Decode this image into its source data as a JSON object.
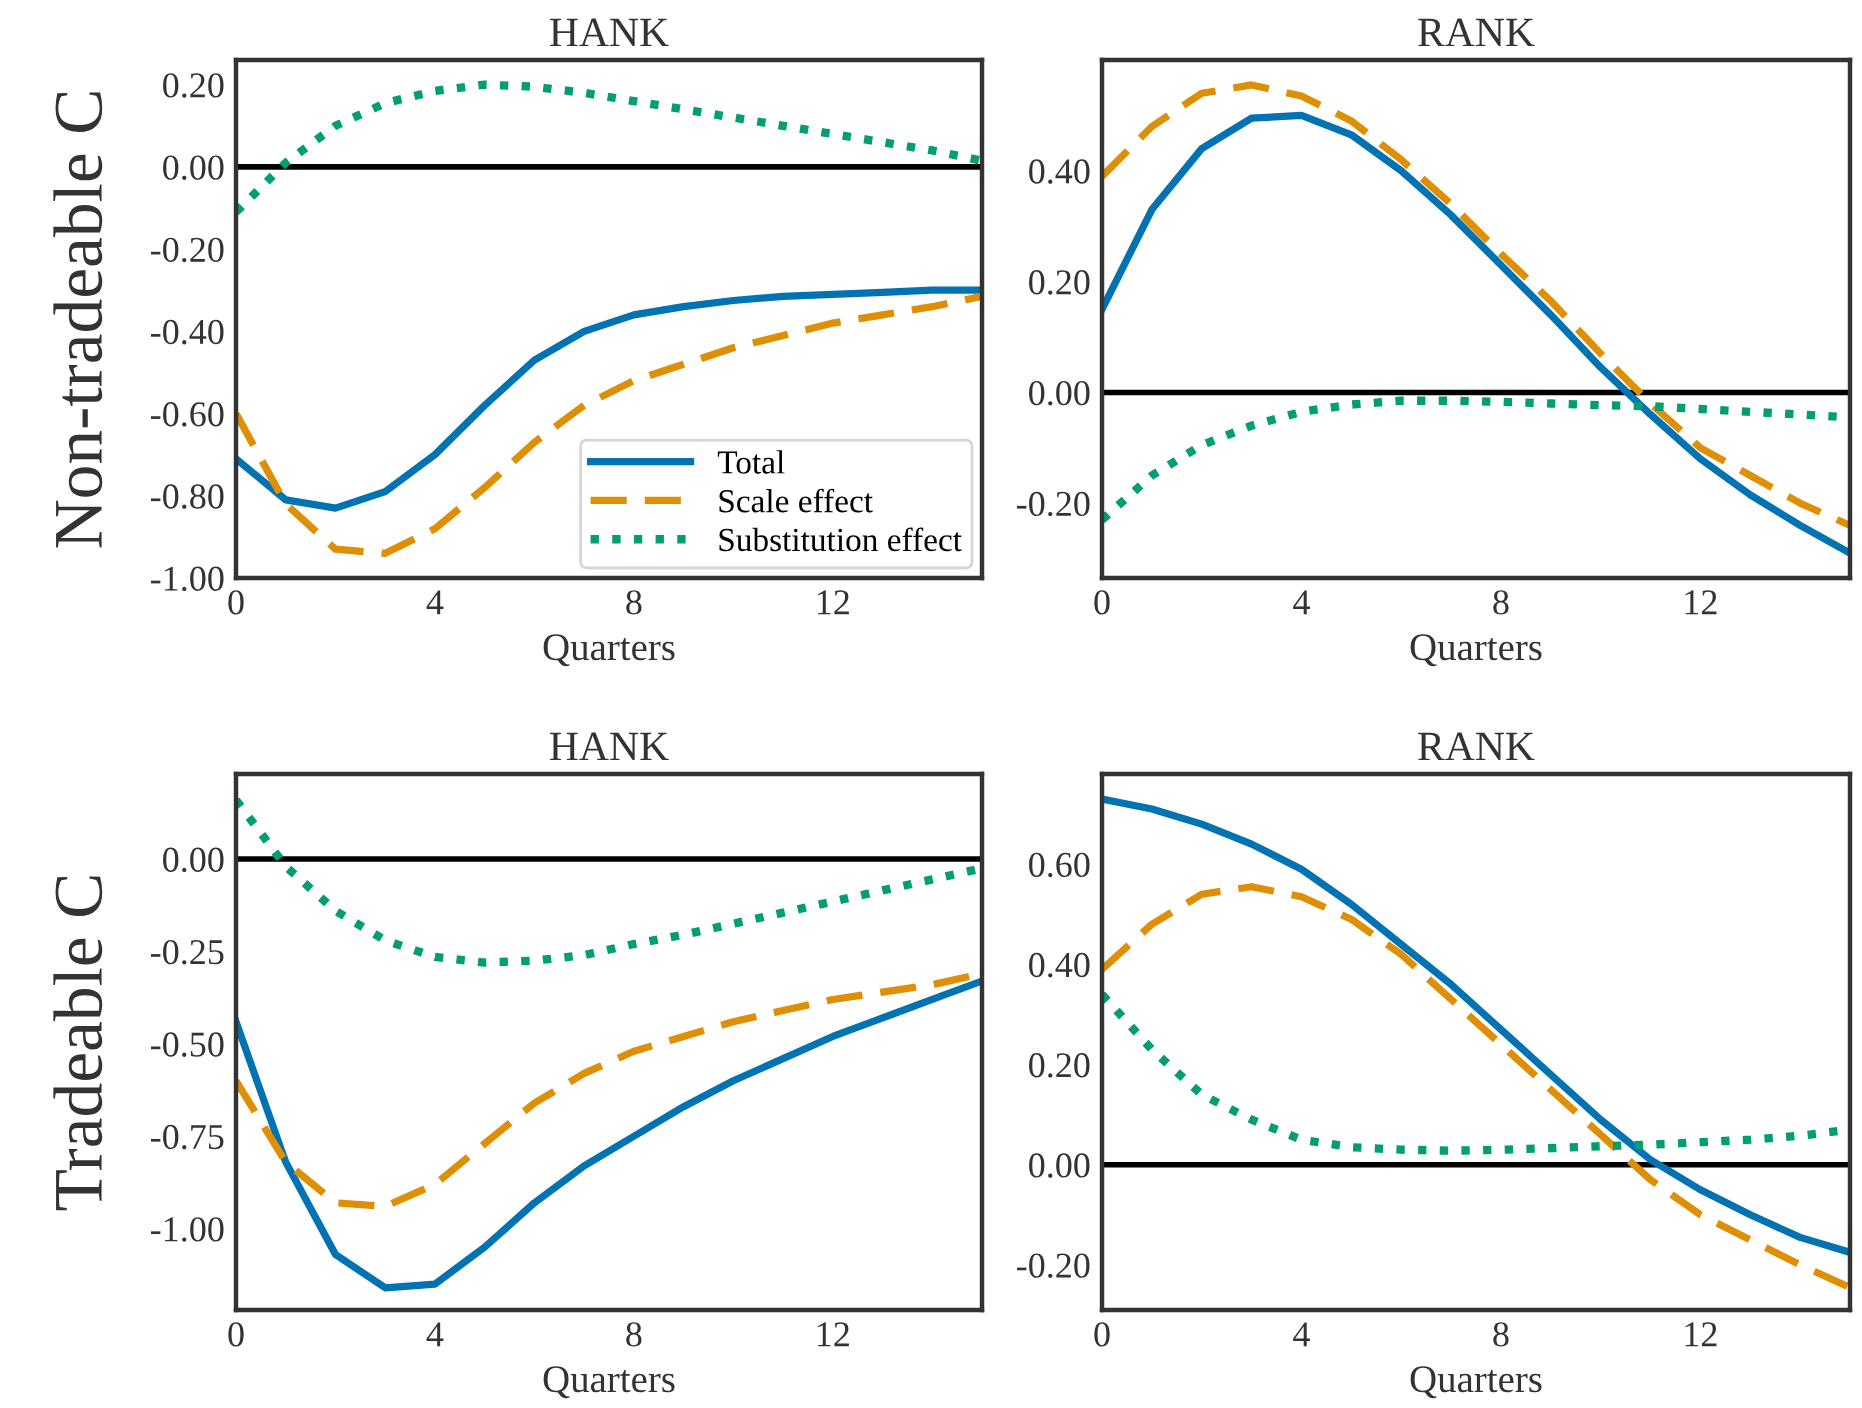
{
  "chart_data": [
    {
      "type": "line",
      "title": "HANK",
      "xlabel": "Quarters",
      "ylabel": "Non-tradeable C",
      "x": [
        0,
        1,
        2,
        3,
        4,
        5,
        6,
        7,
        8,
        9,
        10,
        11,
        12,
        13,
        14,
        15
      ],
      "xlim": [
        0,
        15
      ],
      "xticks": [
        0,
        4,
        8,
        12
      ],
      "ylim": [
        -1.0,
        0.26
      ],
      "yticks": [
        {
          "value": -1.0,
          "label": "-1.00"
        },
        {
          "value": -0.8,
          "label": "-0.80"
        },
        {
          "value": -0.6,
          "label": "-0.60"
        },
        {
          "value": -0.4,
          "label": "-0.40"
        },
        {
          "value": -0.2,
          "label": "-0.20"
        },
        {
          "value": 0.0,
          "label": "0.00"
        },
        {
          "value": 0.2,
          "label": "0.20"
        }
      ],
      "grid": false,
      "legend": "bottom right",
      "ref_lines": [
        {
          "axis": "y",
          "value": 0,
          "color": "#000000",
          "line_style": "solid"
        }
      ],
      "series": [
        {
          "name": "Total",
          "color": "#0173b2",
          "line_style": "solid",
          "values": [
            -0.71,
            -0.81,
            -0.83,
            -0.79,
            -0.7,
            -0.58,
            -0.47,
            -0.4,
            -0.36,
            -0.34,
            -0.325,
            -0.315,
            -0.31,
            -0.305,
            -0.3,
            -0.3
          ]
        },
        {
          "name": "Scale effect",
          "color": "#de8f05",
          "line_style": "dashed",
          "values": [
            -0.6,
            -0.82,
            -0.93,
            -0.94,
            -0.88,
            -0.78,
            -0.67,
            -0.58,
            -0.52,
            -0.48,
            -0.44,
            -0.41,
            -0.38,
            -0.36,
            -0.34,
            -0.315
          ]
        },
        {
          "name": "Substitution effect",
          "color": "#029e73",
          "line_style": "dotted",
          "values": [
            -0.11,
            0.01,
            0.1,
            0.155,
            0.185,
            0.2,
            0.195,
            0.18,
            0.16,
            0.14,
            0.12,
            0.1,
            0.08,
            0.06,
            0.04,
            0.015
          ]
        }
      ]
    },
    {
      "type": "line",
      "title": "RANK",
      "xlabel": "Quarters",
      "x": [
        0,
        1,
        2,
        3,
        4,
        5,
        6,
        7,
        8,
        9,
        10,
        11,
        12,
        13,
        14,
        15
      ],
      "xlim": [
        0,
        15
      ],
      "xticks": [
        0,
        4,
        8,
        12
      ],
      "ylim": [
        -0.335,
        0.6
      ],
      "yticks": [
        {
          "value": -0.2,
          "label": "-0.20"
        },
        {
          "value": 0.0,
          "label": "0.00"
        },
        {
          "value": 0.2,
          "label": "0.20"
        },
        {
          "value": 0.4,
          "label": "0.40"
        }
      ],
      "grid": false,
      "ref_lines": [
        {
          "axis": "y",
          "value": 0,
          "color": "#000000",
          "line_style": "solid"
        }
      ],
      "series": [
        {
          "color": "#0173b2",
          "line_style": "solid",
          "values": [
            0.15,
            0.33,
            0.44,
            0.495,
            0.5,
            0.465,
            0.4,
            0.32,
            0.23,
            0.14,
            0.045,
            -0.04,
            -0.12,
            -0.185,
            -0.24,
            -0.29
          ]
        },
        {
          "color": "#de8f05",
          "line_style": "dashed",
          "values": [
            0.39,
            0.48,
            0.54,
            0.555,
            0.535,
            0.49,
            0.42,
            0.34,
            0.25,
            0.165,
            0.07,
            -0.02,
            -0.1,
            -0.15,
            -0.2,
            -0.24
          ]
        },
        {
          "color": "#029e73",
          "line_style": "dotted",
          "values": [
            -0.23,
            -0.15,
            -0.095,
            -0.06,
            -0.035,
            -0.022,
            -0.015,
            -0.015,
            -0.017,
            -0.02,
            -0.023,
            -0.025,
            -0.03,
            -0.035,
            -0.04,
            -0.045
          ]
        }
      ]
    },
    {
      "type": "line",
      "title": "HANK",
      "xlabel": "Quarters",
      "ylabel": "Tradeable C",
      "x": [
        0,
        1,
        2,
        3,
        4,
        5,
        6,
        7,
        8,
        9,
        10,
        11,
        12,
        13,
        14,
        15
      ],
      "xlim": [
        0,
        15
      ],
      "xticks": [
        0,
        4,
        8,
        12
      ],
      "ylim": [
        -1.22,
        0.23
      ],
      "yticks": [
        {
          "value": -1.0,
          "label": "-1.00"
        },
        {
          "value": -0.75,
          "label": "-0.75"
        },
        {
          "value": -0.5,
          "label": "-0.50"
        },
        {
          "value": -0.25,
          "label": "-0.25"
        },
        {
          "value": 0.0,
          "label": "0.00"
        }
      ],
      "grid": false,
      "ref_lines": [
        {
          "axis": "y",
          "value": 0,
          "color": "#000000",
          "line_style": "solid"
        }
      ],
      "series": [
        {
          "color": "#0173b2",
          "line_style": "solid",
          "values": [
            -0.44,
            -0.82,
            -1.07,
            -1.16,
            -1.15,
            -1.05,
            -0.93,
            -0.83,
            -0.75,
            -0.67,
            -0.6,
            -0.54,
            -0.48,
            -0.43,
            -0.38,
            -0.33
          ]
        },
        {
          "color": "#de8f05",
          "line_style": "dashed",
          "values": [
            -0.6,
            -0.82,
            -0.93,
            -0.94,
            -0.88,
            -0.77,
            -0.66,
            -0.58,
            -0.52,
            -0.48,
            -0.44,
            -0.41,
            -0.38,
            -0.36,
            -0.34,
            -0.31
          ]
        },
        {
          "color": "#029e73",
          "line_style": "dotted",
          "values": [
            0.16,
            -0.02,
            -0.14,
            -0.22,
            -0.265,
            -0.28,
            -0.275,
            -0.26,
            -0.23,
            -0.205,
            -0.175,
            -0.145,
            -0.115,
            -0.085,
            -0.055,
            -0.025
          ]
        }
      ]
    },
    {
      "type": "line",
      "title": "RANK",
      "xlabel": "Quarters",
      "x": [
        0,
        1,
        2,
        3,
        4,
        5,
        6,
        7,
        8,
        9,
        10,
        11,
        12,
        13,
        14,
        15
      ],
      "xlim": [
        0,
        15
      ],
      "xticks": [
        0,
        4,
        8,
        12
      ],
      "ylim": [
        -0.29,
        0.78
      ],
      "yticks": [
        {
          "value": -0.2,
          "label": "-0.20"
        },
        {
          "value": 0.0,
          "label": "0.00"
        },
        {
          "value": 0.2,
          "label": "0.20"
        },
        {
          "value": 0.4,
          "label": "0.40"
        },
        {
          "value": 0.6,
          "label": "0.60"
        }
      ],
      "grid": false,
      "ref_lines": [
        {
          "axis": "y",
          "value": 0,
          "color": "#000000",
          "line_style": "solid"
        }
      ],
      "series": [
        {
          "color": "#0173b2",
          "line_style": "solid",
          "values": [
            0.73,
            0.71,
            0.68,
            0.64,
            0.59,
            0.52,
            0.44,
            0.36,
            0.27,
            0.18,
            0.09,
            0.01,
            -0.05,
            -0.1,
            -0.145,
            -0.175
          ]
        },
        {
          "color": "#de8f05",
          "line_style": "dashed",
          "values": [
            0.39,
            0.48,
            0.54,
            0.555,
            0.535,
            0.49,
            0.42,
            0.33,
            0.24,
            0.15,
            0.06,
            -0.03,
            -0.1,
            -0.15,
            -0.2,
            -0.245
          ]
        },
        {
          "color": "#029e73",
          "line_style": "dotted",
          "values": [
            0.34,
            0.23,
            0.14,
            0.09,
            0.05,
            0.035,
            0.03,
            0.028,
            0.03,
            0.033,
            0.037,
            0.04,
            0.045,
            0.05,
            0.058,
            0.07
          ]
        }
      ]
    }
  ]
}
